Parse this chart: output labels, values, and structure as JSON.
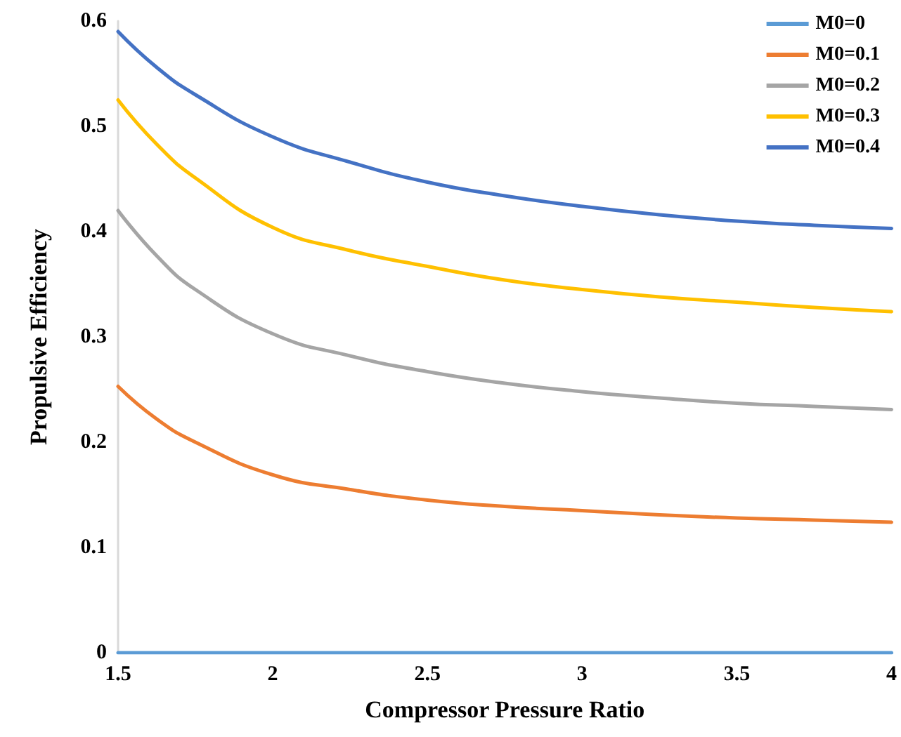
{
  "chart_data": {
    "type": "line",
    "xlabel": "Compressor Pressure Ratio",
    "ylabel": "Propulsive Efficiency",
    "x": [
      1.5,
      1.625,
      1.75,
      2,
      2.25,
      2.5,
      2.75,
      3,
      3.25,
      3.5,
      3.75,
      4
    ],
    "series": [
      {
        "name": "M0=0",
        "color": "#5b9bd5",
        "values": [
          0,
          0,
          0,
          0,
          0,
          0,
          0,
          0,
          0,
          0,
          0,
          0
        ]
      },
      {
        "name": "M0=0.1",
        "color": "#ed7d31",
        "values": [
          0.253,
          0.222,
          0.2,
          0.169,
          0.155,
          0.145,
          0.139,
          0.135,
          0.131,
          0.128,
          0.126,
          0.124
        ]
      },
      {
        "name": "M0=0.2",
        "color": "#a5a5a5",
        "values": [
          0.42,
          0.377,
          0.345,
          0.303,
          0.282,
          0.267,
          0.256,
          0.248,
          0.242,
          0.237,
          0.234,
          0.231
        ]
      },
      {
        "name": "M0=0.3",
        "color": "#ffc000",
        "values": [
          0.525,
          0.483,
          0.451,
          0.404,
          0.382,
          0.367,
          0.354,
          0.345,
          0.338,
          0.333,
          0.328,
          0.324
        ]
      },
      {
        "name": "M0=0.4",
        "color": "#4472c4",
        "values": [
          0.59,
          0.556,
          0.53,
          0.49,
          0.466,
          0.447,
          0.434,
          0.424,
          0.416,
          0.41,
          0.406,
          0.403
        ]
      }
    ],
    "xlim": [
      1.5,
      4
    ],
    "xticks": [
      1.5,
      2,
      2.5,
      3,
      3.5,
      4
    ],
    "ylim": [
      0,
      0.6
    ],
    "yticks": [
      0,
      0.1,
      0.2,
      0.3,
      0.4,
      0.5,
      0.6
    ],
    "grid": false,
    "legend": "top right",
    "marker": "none",
    "line_style": "solid"
  }
}
